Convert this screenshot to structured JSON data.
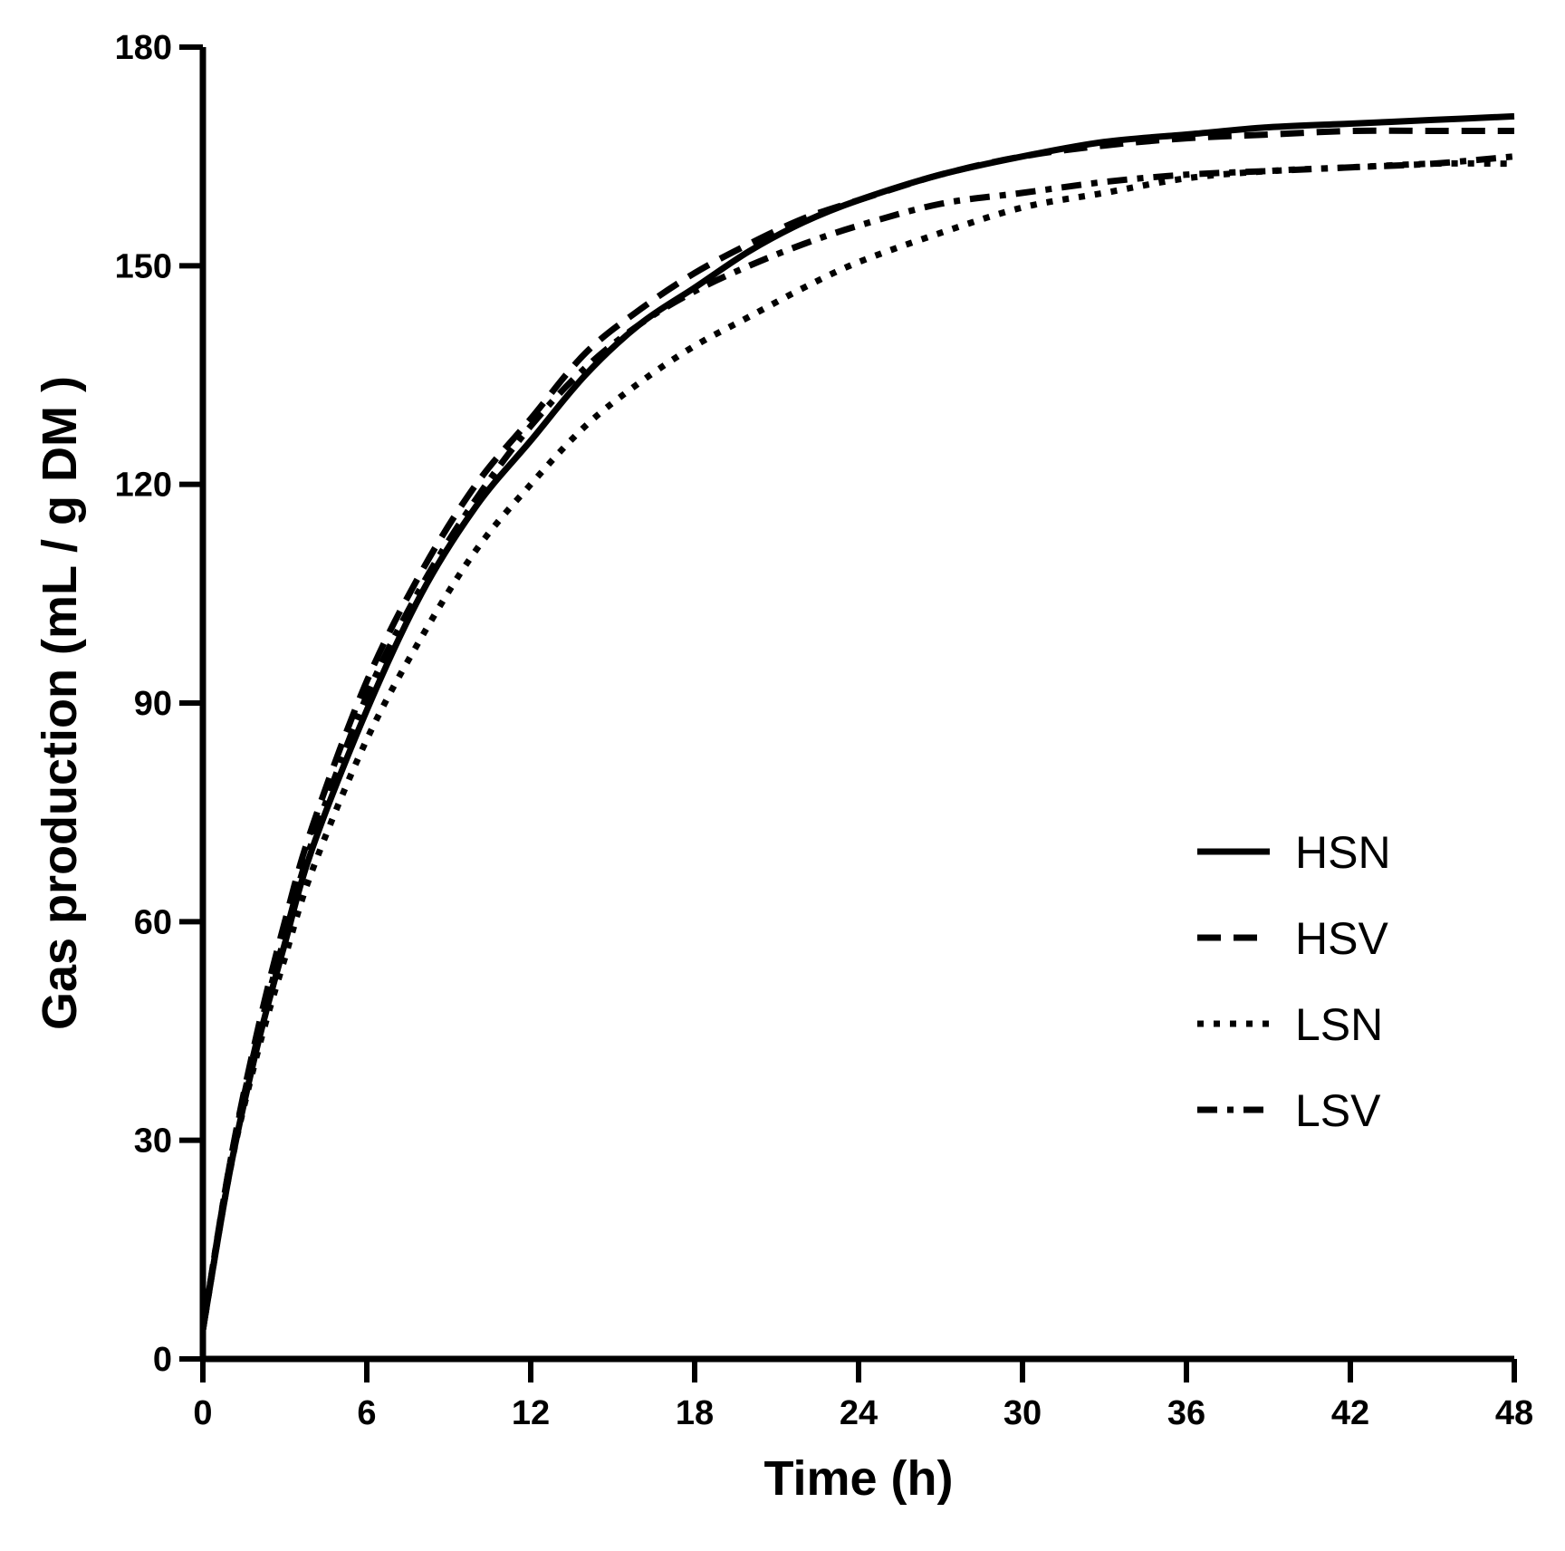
{
  "chart_data": {
    "type": "line",
    "title": "",
    "xlabel": "Time (h)",
    "ylabel": "Gas production (mL / g DM )",
    "xlim": [
      0,
      48
    ],
    "ylim": [
      0,
      180
    ],
    "xticks": [
      0,
      6,
      12,
      18,
      24,
      30,
      36,
      42,
      48
    ],
    "yticks": [
      0,
      30,
      60,
      90,
      120,
      150,
      180
    ],
    "grid": false,
    "legend_position": "right-middle",
    "x": [
      0,
      1,
      2,
      3,
      4,
      6,
      8,
      10,
      12,
      14,
      16,
      18,
      20,
      22,
      24,
      27,
      30,
      33,
      36,
      39,
      42,
      45,
      48
    ],
    "series": [
      {
        "name": "HSN",
        "style": "solid",
        "values": [
          4,
          26,
          43,
          57,
          70,
          89,
          105,
          117,
          126,
          135,
          142,
          147,
          152,
          156,
          159,
          162.5,
          165,
          167,
          168,
          169,
          169.5,
          170,
          170.5
        ]
      },
      {
        "name": "HSV",
        "style": "dashed",
        "values": [
          4,
          27,
          45,
          60,
          73,
          93,
          108,
          120,
          129,
          138,
          144,
          149,
          153,
          156.5,
          159,
          162.5,
          165,
          166.5,
          167.5,
          168,
          168.5,
          168.5,
          168.5
        ]
      },
      {
        "name": "LSN",
        "style": "dotted",
        "values": [
          4,
          26,
          42,
          55,
          67,
          85,
          99,
          111,
          120,
          128,
          134,
          139,
          143,
          147,
          150.5,
          154.5,
          158,
          160,
          162,
          163,
          163.5,
          164,
          164
        ]
      },
      {
        "name": "LSV",
        "style": "dash-dot",
        "values": [
          4,
          27,
          44,
          58,
          71,
          91,
          106,
          118,
          128,
          136,
          142,
          146.5,
          150,
          153,
          155.5,
          158.5,
          160,
          161.5,
          162.5,
          163,
          163.5,
          164,
          165
        ]
      }
    ]
  }
}
